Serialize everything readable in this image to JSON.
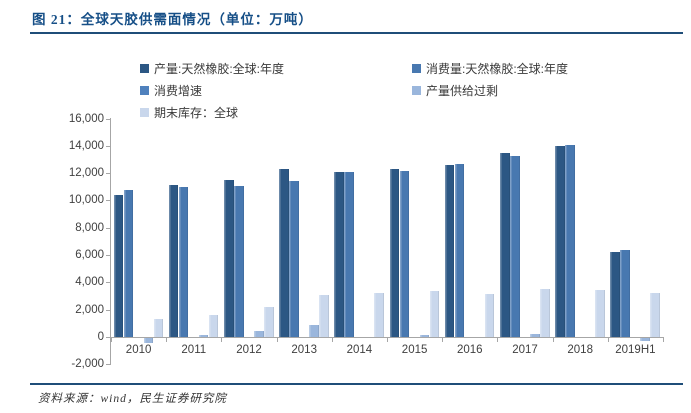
{
  "figure": {
    "title": "图 21：全球天胶供需面情况（单位：万吨）",
    "source": "资料来源：wind，民生证券研究院"
  },
  "chart_data": {
    "type": "bar",
    "title": "全球天胶供需面情况",
    "unit": "万吨",
    "legend_position": "top",
    "grid": false,
    "categories": [
      "2010",
      "2011",
      "2012",
      "2013",
      "2014",
      "2015",
      "2016",
      "2017",
      "2018",
      "2019H1"
    ],
    "series": [
      {
        "name": "产量:天然橡胶:全球:年度",
        "color": "#2C5784",
        "values": [
          10400,
          11150,
          11500,
          12300,
          12100,
          12300,
          12600,
          13500,
          13950,
          6200
        ]
      },
      {
        "name": "消费量:天然橡胶:全球:年度",
        "color": "#4878B0",
        "values": [
          10800,
          10950,
          11050,
          11450,
          12100,
          12150,
          12650,
          13250,
          14050,
          6400
        ]
      },
      {
        "name": "消费增速",
        "color": "#4F81BD",
        "values": [
          0,
          0,
          0,
          0,
          0,
          0,
          0,
          0,
          0,
          0
        ]
      },
      {
        "name": "产量供给过剩",
        "color": "#9AB6DC",
        "values": [
          -400,
          150,
          450,
          850,
          0,
          150,
          0,
          250,
          0,
          -200
        ]
      },
      {
        "name": "期末库存：全球",
        "color": "#C9D7EC",
        "values": [
          1300,
          1600,
          2200,
          3100,
          3200,
          3350,
          3150,
          3550,
          3450,
          3250
        ]
      }
    ],
    "ylim": [
      -2000,
      16000
    ],
    "yticks": [
      -2000,
      0,
      2000,
      4000,
      6000,
      8000,
      10000,
      12000,
      14000,
      16000
    ],
    "ytick_labels": [
      "-2,000",
      "0",
      "2,000",
      "4,000",
      "6,000",
      "8,000",
      "10,000",
      "12,000",
      "14,000",
      "16,000"
    ]
  },
  "colors": {
    "title_text": "#164F87",
    "rule": "#1F4E79",
    "axis": "#A6A6A6",
    "tick_text": "#404040",
    "legend_text": "#3A3A3A",
    "source_text": "#333333"
  }
}
